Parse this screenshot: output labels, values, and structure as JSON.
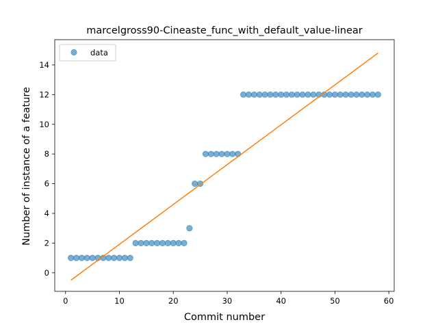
{
  "chart_data": {
    "type": "scatter",
    "title": "marcelgross90-Cineaste_func_with_default_value-linear",
    "xlabel": "Commit number",
    "ylabel": "Number of instance of a feature",
    "xlim": [
      -2,
      61
    ],
    "ylim": [
      -1.25,
      15.7
    ],
    "xticks": [
      0,
      10,
      20,
      30,
      40,
      50,
      60
    ],
    "yticks": [
      0,
      2,
      4,
      6,
      8,
      10,
      12,
      14
    ],
    "grid": false,
    "legend": {
      "placement": "top-left",
      "entries": [
        "data"
      ]
    },
    "series": [
      {
        "name": "data",
        "kind": "scatter",
        "color": "#1f77b4",
        "x": [
          1,
          2,
          3,
          4,
          5,
          6,
          7,
          8,
          9,
          10,
          11,
          12,
          13,
          14,
          15,
          16,
          17,
          18,
          19,
          20,
          21,
          22,
          23,
          24,
          25,
          26,
          27,
          28,
          29,
          30,
          31,
          32,
          33,
          34,
          35,
          36,
          37,
          38,
          39,
          40,
          41,
          42,
          43,
          44,
          45,
          46,
          47,
          48,
          49,
          50,
          51,
          52,
          53,
          54,
          55,
          56,
          57,
          58
        ],
        "y": [
          1,
          1,
          1,
          1,
          1,
          1,
          1,
          1,
          1,
          1,
          1,
          1,
          2,
          2,
          2,
          2,
          2,
          2,
          2,
          2,
          2,
          2,
          3,
          6,
          6,
          8,
          8,
          8,
          8,
          8,
          8,
          8,
          12,
          12,
          12,
          12,
          12,
          12,
          12,
          12,
          12,
          12,
          12,
          12,
          12,
          12,
          12,
          12,
          12,
          12,
          12,
          12,
          12,
          12,
          12,
          12,
          12,
          12
        ]
      },
      {
        "kind": "line",
        "color": "#ff7f0e",
        "x": [
          1,
          58
        ],
        "y": [
          -0.5,
          14.8
        ]
      }
    ]
  }
}
